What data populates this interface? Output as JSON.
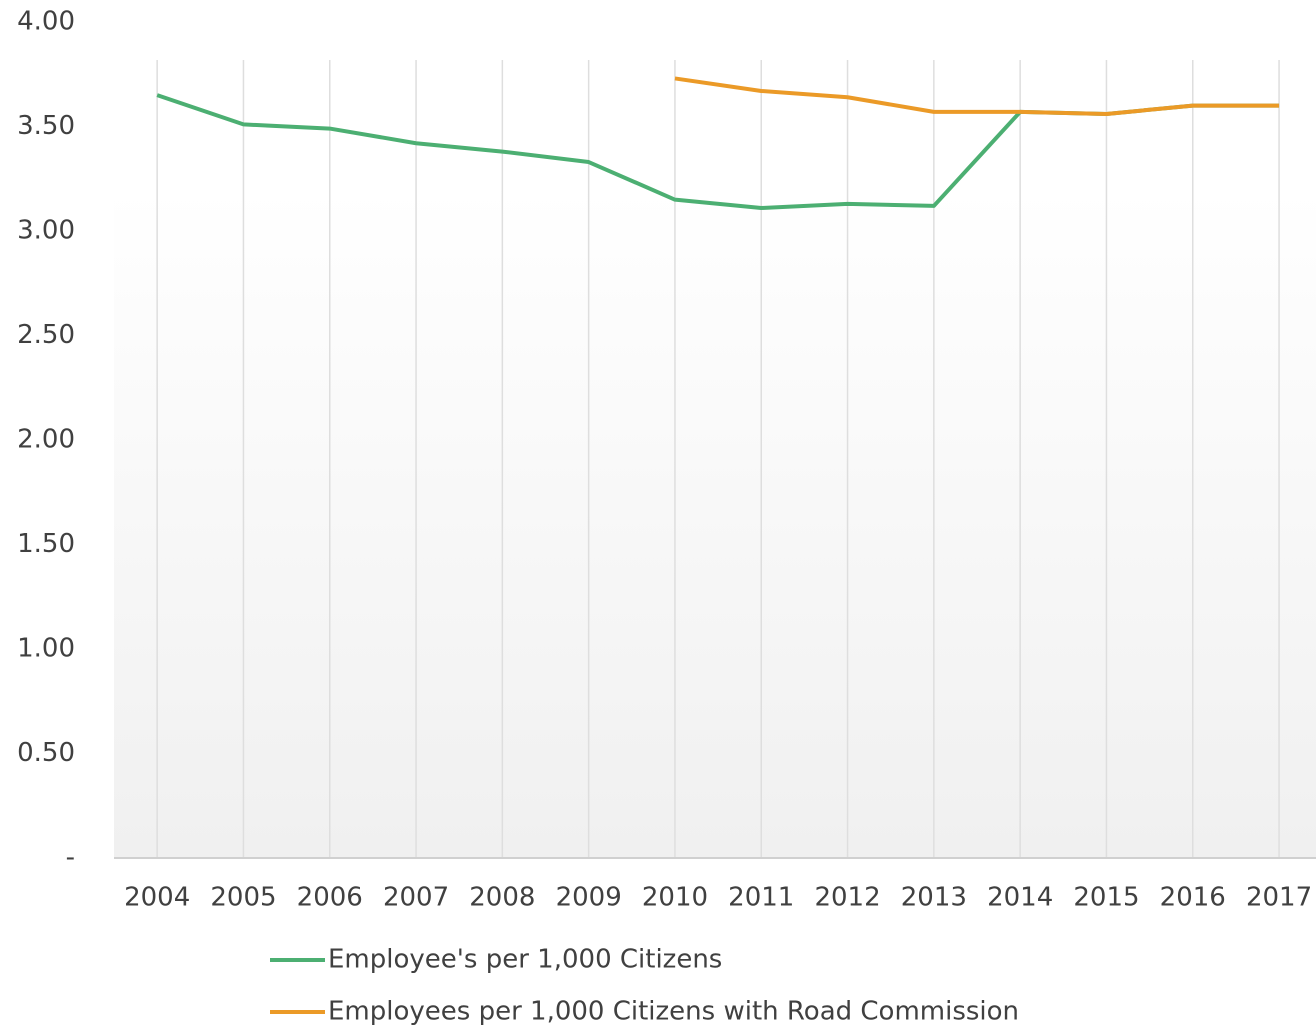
{
  "chart_data": {
    "type": "line",
    "categories": [
      "2004",
      "2005",
      "2006",
      "2007",
      "2008",
      "2009",
      "2010",
      "2011",
      "2012",
      "2013",
      "2014",
      "2015",
      "2016",
      "2017"
    ],
    "series": [
      {
        "name": "Employee's per 1,000 Citizens",
        "color": "#4caf72",
        "values": [
          3.65,
          3.51,
          3.49,
          3.42,
          3.38,
          3.33,
          3.15,
          3.11,
          3.13,
          3.12,
          3.57,
          3.56,
          3.6,
          3.6
        ]
      },
      {
        "name": "Employees per 1,000 Citizens with Road Commission",
        "color": "#eb9a27",
        "values": [
          null,
          null,
          null,
          null,
          null,
          null,
          3.73,
          3.67,
          3.64,
          3.57,
          3.57,
          3.56,
          3.6,
          3.6
        ]
      }
    ],
    "ylim": [
      0,
      4
    ],
    "yticks": [
      {
        "value": 0,
        "label": "-"
      },
      {
        "value": 0.5,
        "label": "0.50"
      },
      {
        "value": 1,
        "label": "1.00"
      },
      {
        "value": 1.5,
        "label": "1.50"
      },
      {
        "value": 2,
        "label": "2.00"
      },
      {
        "value": 2.5,
        "label": "2.50"
      },
      {
        "value": 3,
        "label": "3.00"
      },
      {
        "value": 3.5,
        "label": "3.50"
      },
      {
        "value": 4,
        "label": "4.00"
      }
    ],
    "legend": "bottom"
  }
}
